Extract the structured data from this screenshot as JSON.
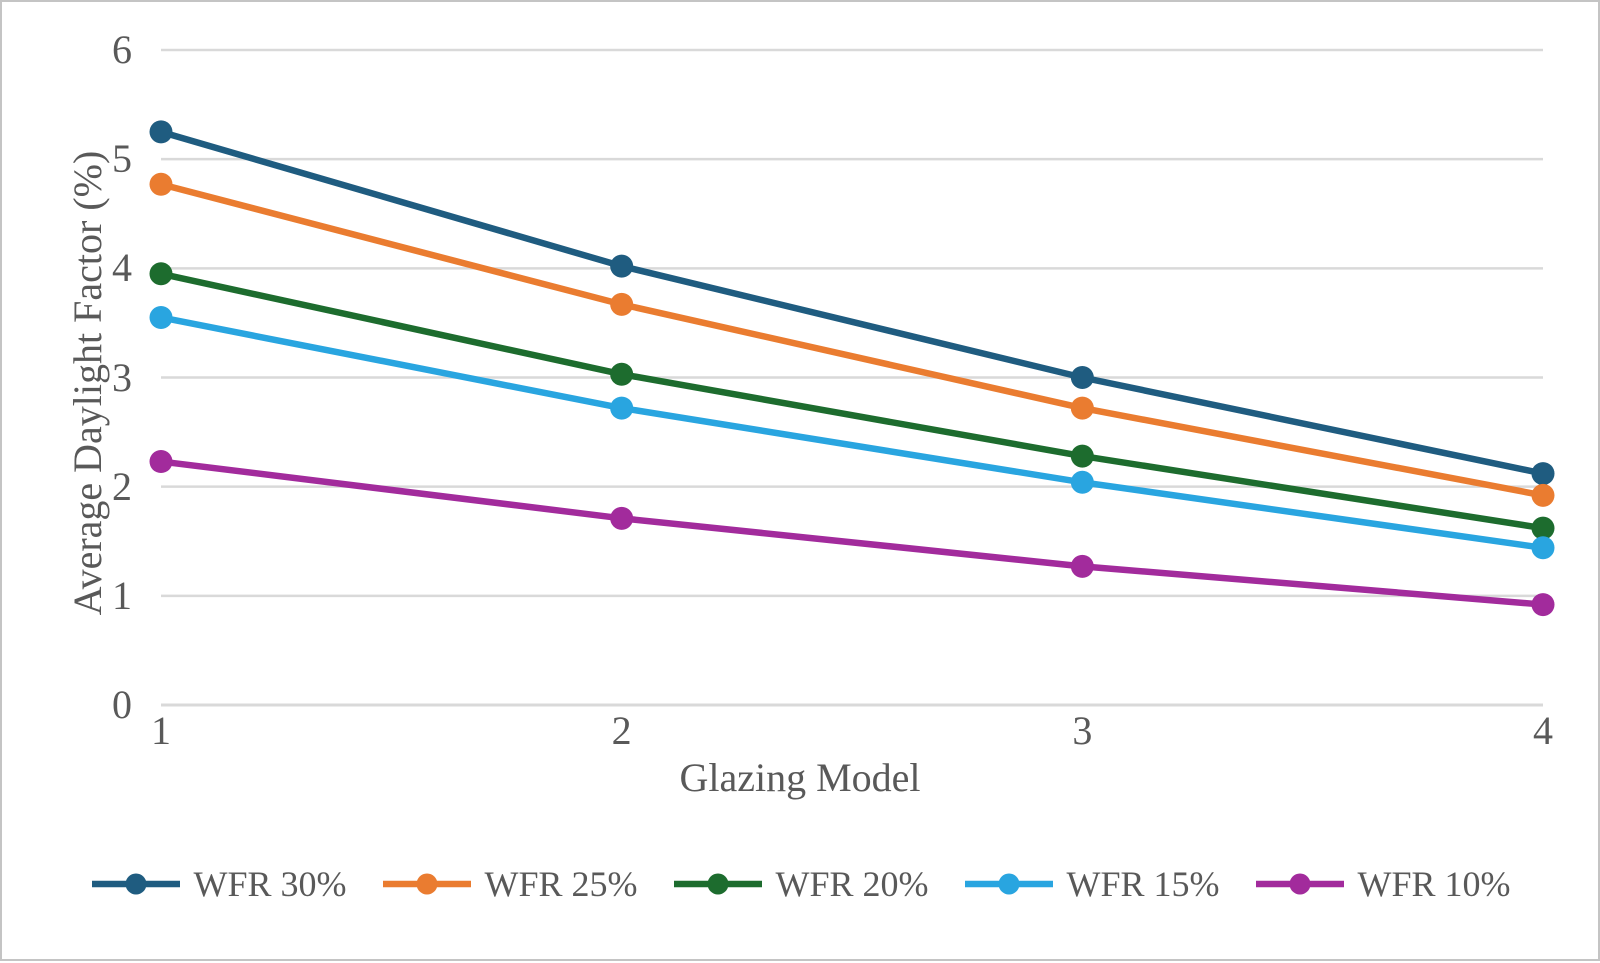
{
  "chart_data": {
    "type": "line",
    "title": "",
    "xlabel": "Glazing Model",
    "ylabel": "Average Daylight Factor (%)",
    "xticks": [
      "1",
      "2",
      "3",
      "4"
    ],
    "yticks": [
      0,
      1,
      2,
      3,
      4,
      5,
      6
    ],
    "ylim": [
      0,
      6
    ],
    "grid": "horizontal",
    "legend_position": "bottom",
    "gridline_color": "#d9d9d9",
    "tick_label_color": "#595959",
    "series": [
      {
        "name": "WFR 30%",
        "color": "#1f5c80",
        "values": [
          5.25,
          4.02,
          3.0,
          2.12
        ]
      },
      {
        "name": "WFR 25%",
        "color": "#ea7c30",
        "values": [
          4.77,
          3.67,
          2.72,
          1.92
        ]
      },
      {
        "name": "WFR 20%",
        "color": "#1d6c2e",
        "values": [
          3.95,
          3.03,
          2.28,
          1.62
        ]
      },
      {
        "name": "WFR 15%",
        "color": "#29a5e0",
        "values": [
          3.55,
          2.72,
          2.04,
          1.44
        ]
      },
      {
        "name": "WFR 10%",
        "color": "#a22b9c",
        "values": [
          2.23,
          1.71,
          1.27,
          0.92
        ]
      }
    ]
  },
  "frame": {
    "background": "#ffffff",
    "border_color": "#c4c4c4"
  }
}
